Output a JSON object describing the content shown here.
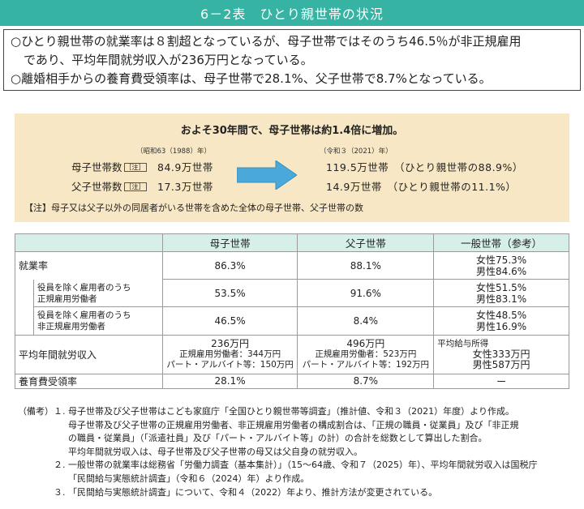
{
  "title": "6－2表　ひとり親世帯の状況",
  "summary": [
    "○ひとり親世帯の就業率は８割超となっているが、母子世帯ではそのうち46.5％が非正規雇用",
    "であり、平均年間就労収入が236万円となっている。",
    "○離婚相手からの養育費受領率は、母子世帯で28.1%、父子世帯で8.7%となっている。"
  ],
  "highlight": {
    "headline": "およそ30年間で、母子世帯は約1.4倍に増加。",
    "left_year": "（昭和63（1988）年）",
    "right_year": "（令和３（2021）年）",
    "mother_label": "母子世帯数",
    "father_label": "父子世帯数",
    "note_tag": "［注］",
    "mother_before": "84.9万世帯",
    "father_before": "17.3万世帯",
    "mother_after": "119.5万世帯　（ひとり親世帯の88.9%）",
    "father_after": "14.9万世帯　（ひとり親世帯の11.1%）",
    "note": "【注】母子又は父子以外の同居者がいる世帯を含めた全体の母子世帯、父子世帯の数"
  },
  "table": {
    "headers": [
      "",
      "母子世帯",
      "父子世帯",
      "一般世帯（参考）"
    ],
    "employment": {
      "label": "就業率",
      "mother": "86.3%",
      "father": "88.1%",
      "general": [
        "女性75.3%",
        "男性84.6%"
      ]
    },
    "regular": {
      "label_lines": [
        "役員を除く雇用者のうち",
        "正規雇用労働者"
      ],
      "mother": "53.5%",
      "father": "91.6%",
      "general": [
        "女性51.5%",
        "男性83.1%"
      ]
    },
    "nonregular": {
      "label_lines": [
        "役員を除く雇用者のうち",
        "非正規雇用労働者"
      ],
      "mother": "46.5%",
      "father": "8.4%",
      "general": [
        "女性48.5%",
        "男性16.9%"
      ]
    },
    "income": {
      "label": "平均年間就労収入",
      "mother": [
        "236万円",
        "正規雇用労働者：344万円",
        "パート・アルバイト等：150万円"
      ],
      "father": [
        "496万円",
        "正規雇用労働者：523万円",
        "パート・アルバイト等：192万円"
      ],
      "general": [
        "平均給与所得",
        "女性333万円",
        "男性587万円"
      ]
    },
    "support": {
      "label": "養育費受領率",
      "mother": "28.1%",
      "father": "8.7%",
      "general": "ー"
    }
  },
  "notes": {
    "prefix": "（備考）",
    "items": [
      {
        "num": "１.",
        "lines": [
          "母子世帯及び父子世帯はこども家庭庁「全国ひとり親世帯等調査」（推計値、令和３（2021）年度）より作成。",
          "母子世帯及び父子世帯の正規雇用労働者、非正規雇用労働者の構成割合は、「正規の職員・従業員」及び「非正規",
          "の職員・従業員」（「派遣社員」及び「パート・アルバイト等」の計）の合計を総数として算出した割合。",
          "平均年間就労収入は、母子世帯及び父子世帯の母又は父自身の就労収入。"
        ]
      },
      {
        "num": "２.",
        "lines": [
          "一般世帯の就業率は総務省「労働力調査（基本集計）」（15～64歳、令和７（2025）年）、平均年間就労収入は国税庁",
          "「民間給与実態統計調査」（令和６（2024）年）より作成。"
        ]
      },
      {
        "num": "３.",
        "lines": [
          "「民間給与実態統計調査」について、令和４（2022）年より、推計方法が変更されている。"
        ]
      }
    ]
  },
  "colors": {
    "title_bg": "#36b3a3",
    "highlight_bg": "#f7e7c4",
    "header_bg": "#d6efe9",
    "arrow": "#4aa9d8"
  }
}
